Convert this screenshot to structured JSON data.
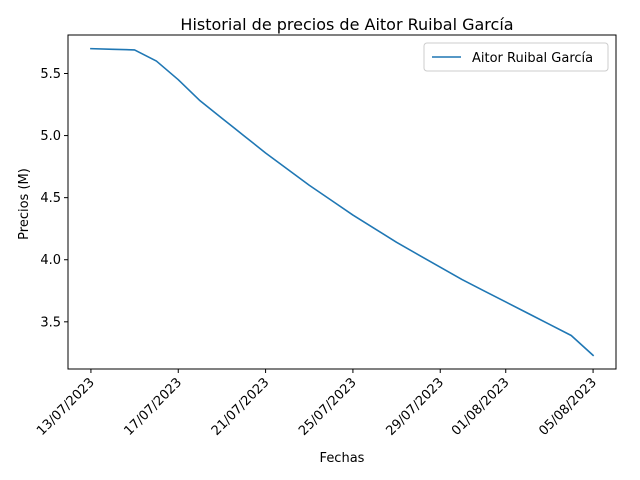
{
  "chart_data": {
    "type": "line",
    "title": "Historial de precios de Aitor Ruibal García",
    "xlabel": "Fechas",
    "ylabel": "Precios (M)",
    "x_ticks": [
      "13/07/2023",
      "17/07/2023",
      "21/07/2023",
      "25/07/2023",
      "29/07/2023",
      "01/08/2023",
      "05/08/2023"
    ],
    "x_tick_days": [
      0,
      4,
      8,
      12,
      16,
      19,
      23
    ],
    "xlim": [
      -1.05,
      24.05
    ],
    "ylim": [
      3.12,
      5.81
    ],
    "y_ticks": [
      "3.5",
      "4.0",
      "4.5",
      "5.0",
      "5.5"
    ],
    "y_tick_values": [
      3.5,
      4.0,
      4.5,
      5.0,
      5.5
    ],
    "legend_position": "top-right",
    "series": [
      {
        "name": "Aitor Ruibal García",
        "color": "#1f77b4",
        "x_days": [
          0,
          1,
          2,
          3,
          4,
          5,
          6,
          7,
          8,
          9,
          10,
          11,
          12,
          13,
          14,
          15,
          16,
          17,
          18,
          19,
          20,
          21,
          22,
          23
        ],
        "values": [
          5.7,
          5.695,
          5.69,
          5.6,
          5.45,
          5.28,
          5.14,
          5.0,
          4.86,
          4.73,
          4.6,
          4.48,
          4.36,
          4.25,
          4.14,
          4.04,
          3.94,
          3.84,
          3.75,
          3.66,
          3.57,
          3.48,
          3.39,
          3.23
        ]
      }
    ]
  }
}
